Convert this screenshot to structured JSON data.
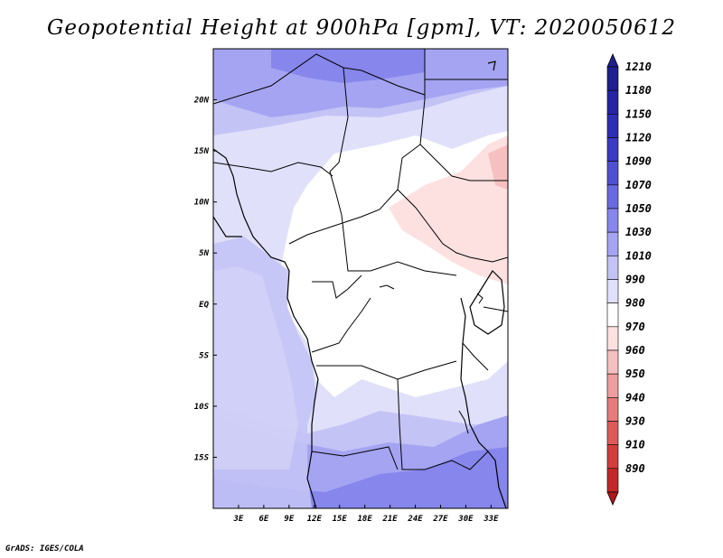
{
  "title": "Geopotential Height at 900hPa [gpm], VT: 2020050612",
  "footer": "GrADS: IGES/COLA",
  "map": {
    "lon_range": [
      0,
      35
    ],
    "lat_range": [
      -20,
      25
    ],
    "lon_ticks": [
      {
        "value": 3,
        "label": "3E"
      },
      {
        "value": 6,
        "label": "6E"
      },
      {
        "value": 9,
        "label": "9E"
      },
      {
        "value": 12,
        "label": "12E"
      },
      {
        "value": 15,
        "label": "15E"
      },
      {
        "value": 18,
        "label": "18E"
      },
      {
        "value": 21,
        "label": "21E"
      },
      {
        "value": 24,
        "label": "24E"
      },
      {
        "value": 27,
        "label": "27E"
      },
      {
        "value": 30,
        "label": "30E"
      },
      {
        "value": 33,
        "label": "33E"
      }
    ],
    "lat_ticks": [
      {
        "value": 20,
        "label": "20N"
      },
      {
        "value": 15,
        "label": "15N"
      },
      {
        "value": 10,
        "label": "10N"
      },
      {
        "value": 5,
        "label": "5N"
      },
      {
        "value": 0,
        "label": "EQ"
      },
      {
        "value": -5,
        "label": "5S"
      },
      {
        "value": -10,
        "label": "10S"
      },
      {
        "value": -15,
        "label": "15S"
      }
    ]
  },
  "colorbar": {
    "levels": [
      {
        "label": "1210",
        "color": "#1f1f8f"
      },
      {
        "label": "1180",
        "color": "#2525a3"
      },
      {
        "label": "1150",
        "color": "#2e2eb5"
      },
      {
        "label": "1120",
        "color": "#3b3bc4"
      },
      {
        "label": "1090",
        "color": "#5050d2"
      },
      {
        "label": "1070",
        "color": "#6a6ae0"
      },
      {
        "label": "1050",
        "color": "#8686ec"
      },
      {
        "label": "1030",
        "color": "#a4a4f2"
      },
      {
        "label": "1010",
        "color": "#c3c3f6"
      },
      {
        "label": "990",
        "color": "#e0e0fb"
      },
      {
        "label": "980",
        "color": "#ffffff"
      },
      {
        "label": "970",
        "color": "#fde0e0"
      },
      {
        "label": "960",
        "color": "#f6c0c0"
      },
      {
        "label": "950",
        "color": "#ee9e9e"
      },
      {
        "label": "940",
        "color": "#e67c7c"
      },
      {
        "label": "930",
        "color": "#de5a5a"
      },
      {
        "label": "910",
        "color": "#d33d3d"
      },
      {
        "label": "890",
        "color": "#c22828"
      }
    ],
    "bottom_color": "#b01818"
  }
}
